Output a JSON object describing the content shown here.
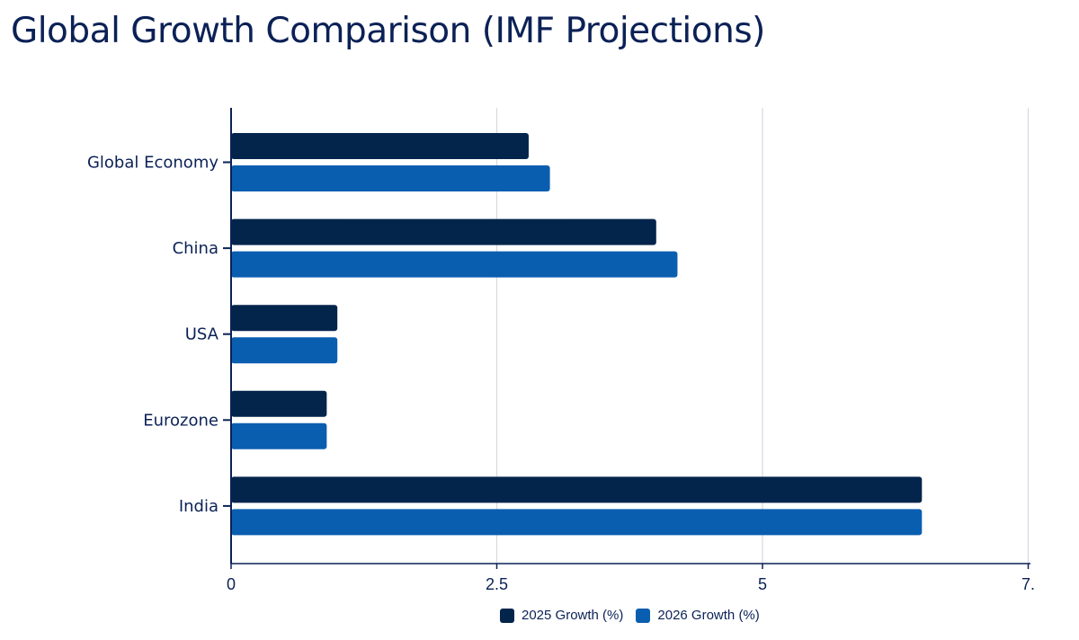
{
  "title": "Global Growth Comparison (IMF Projections)",
  "colors": {
    "s2025": "#03254c",
    "s2026": "#0a5eb0",
    "grid": "#d5d9e2",
    "axis": "#0b2156",
    "text": "#0b2156"
  },
  "chart_data": {
    "type": "bar",
    "orientation": "horizontal",
    "categories": [
      "Global Economy",
      "China",
      "USA",
      "Eurozone",
      "India"
    ],
    "series": [
      {
        "name": "2025 Growth (%)",
        "values": [
          2.8,
          4.0,
          1.0,
          0.9,
          6.5
        ]
      },
      {
        "name": "2026 Growth (%)",
        "values": [
          3.0,
          4.2,
          1.0,
          0.9,
          6.5
        ]
      }
    ],
    "xticks": [
      "0",
      "2.5",
      "5",
      "7."
    ],
    "xlim": [
      0,
      7.5
    ],
    "grid": true,
    "legend_position": "bottom"
  }
}
